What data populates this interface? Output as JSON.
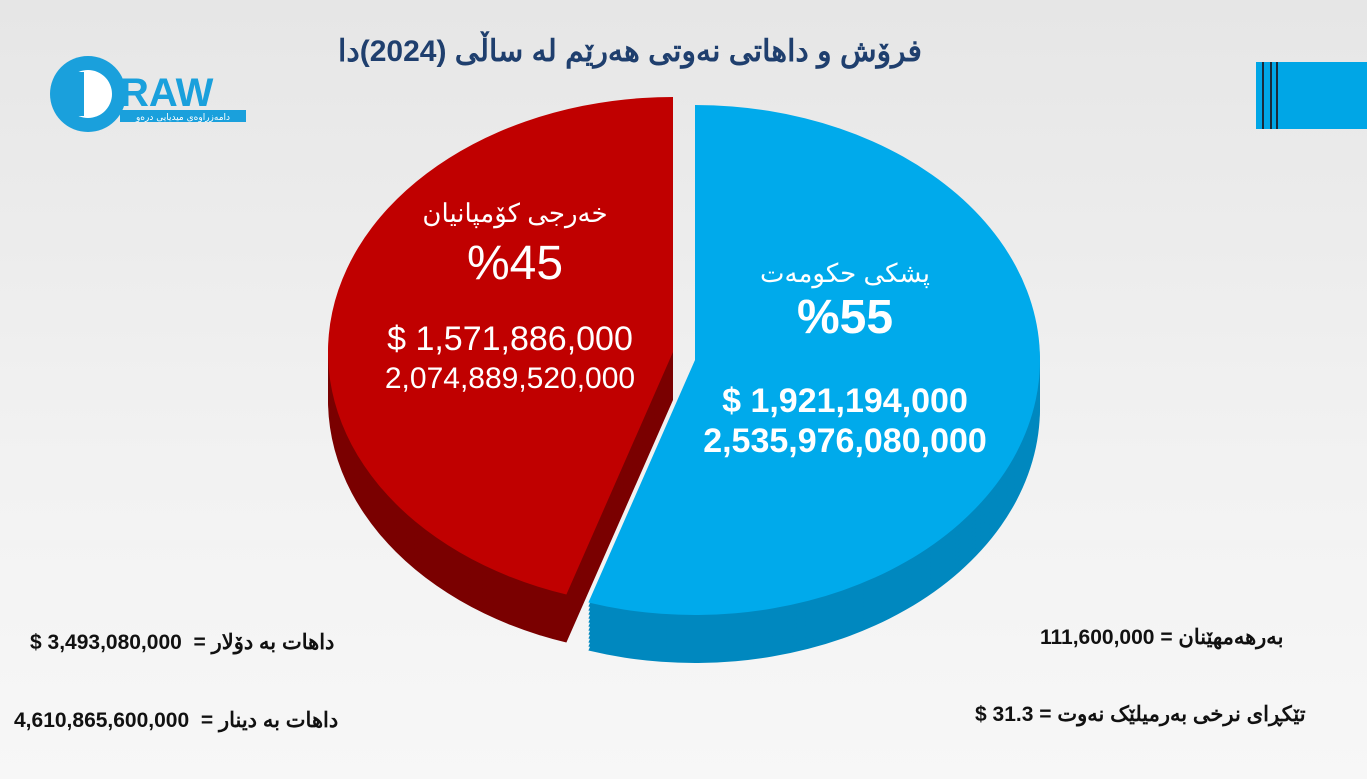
{
  "title": "فرۆش و داهاتی نەوتی هەرێم لە ساڵی (2024)دا",
  "logo": {
    "brand": "DRAW",
    "tagline": "دامەزراوەی میدیایی درەو"
  },
  "chart_data": {
    "type": "pie",
    "title": "فرۆش و داهاتی نەوتی هەرێم لە ساڵی (2024)دا",
    "slices": [
      {
        "label": "پشکی حکومەت",
        "percent_label": "%55",
        "percent": 55,
        "usd_label": "$ 1,921,194,000",
        "usd": 1921194000,
        "iqd_label": "2,535,976,080,000",
        "iqd": 2535976080000,
        "color": "#00aaeb"
      },
      {
        "label": "خەرجی کۆمپانیان",
        "percent_label": "%45",
        "percent": 45,
        "usd_label": "$ 1,571,886,000",
        "usd": 1571886000,
        "iqd_label": "2,074,889,520,000",
        "iqd": 2074889520000,
        "color": "#c00000"
      }
    ]
  },
  "stats": {
    "revenue_usd": {
      "label": "داهات بە دۆلار  =",
      "value": "$ 3,493,080,000"
    },
    "revenue_iqd": {
      "label": "داهات بە دینار  =",
      "value": "4,610,865,600,000"
    },
    "production": {
      "label": "بەرهەمهێنان =",
      "value": "111,600,000"
    },
    "avg_price": {
      "label": "تێکڕای نرخی بەرمیلێک نەوت =",
      "value": "$ 31.3"
    }
  }
}
